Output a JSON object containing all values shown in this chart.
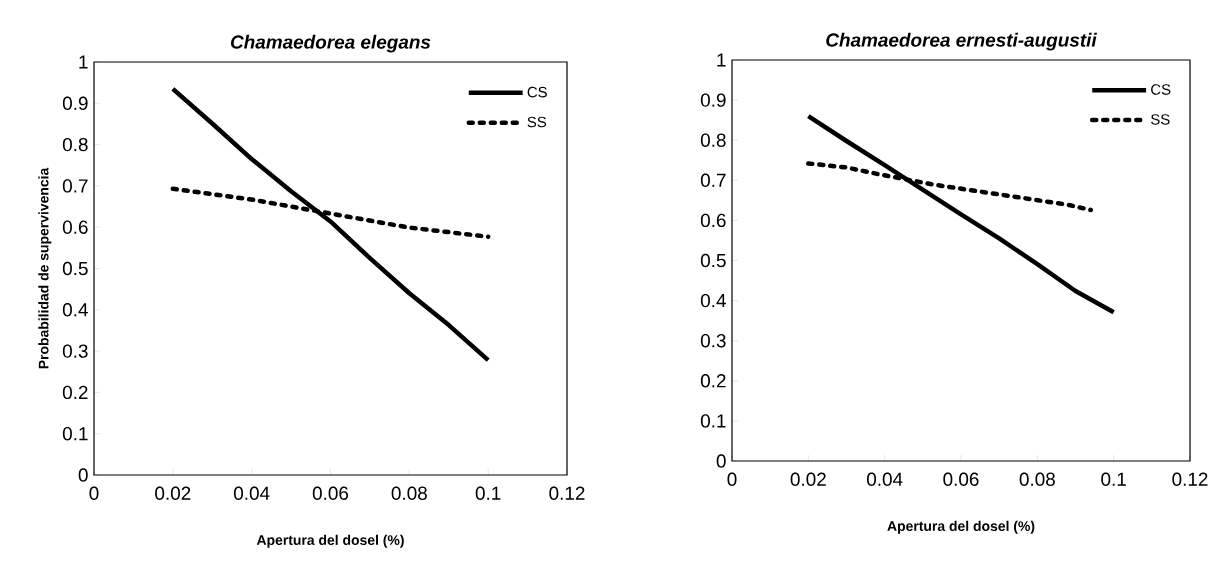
{
  "chart_data": [
    {
      "type": "line",
      "title": "Chamaedorea elegans",
      "xlabel": "Apertura del dosel (%)",
      "ylabel": "Probabilidad de supervivencia",
      "legend": "top right",
      "xlim": [
        0,
        0.12
      ],
      "ylim": [
        0,
        1
      ],
      "xticks": [
        0,
        0.02,
        0.04,
        0.06,
        0.08,
        0.1,
        0.12
      ],
      "yticks": [
        0,
        0.1,
        0.2,
        0.3,
        0.4,
        0.5,
        0.6,
        0.7,
        0.8,
        0.9,
        1
      ],
      "series": [
        {
          "name": "CS",
          "color": "#000000",
          "line_style": "solid",
          "x": [
            0.02,
            0.03,
            0.04,
            0.05,
            0.06,
            0.07,
            0.08,
            0.09,
            0.1
          ],
          "values": [
            0.935,
            0.851,
            0.765,
            0.687,
            0.614,
            0.525,
            0.44,
            0.363,
            0.278
          ]
        },
        {
          "name": "SS",
          "color": "#000000",
          "line_style": "dashed",
          "x": [
            0.02,
            0.04,
            0.06,
            0.08,
            0.1
          ],
          "values": [
            0.693,
            0.667,
            0.633,
            0.599,
            0.577
          ]
        }
      ]
    },
    {
      "type": "line",
      "title": "Chamaedorea ernesti-augustii",
      "xlabel": "Apertura del dosel (%)",
      "legend": "top right",
      "xlim": [
        0,
        0.12
      ],
      "ylim": [
        0,
        1
      ],
      "xticks": [
        0,
        0.02,
        0.04,
        0.06,
        0.08,
        0.1,
        0.12
      ],
      "yticks": [
        0,
        0.1,
        0.2,
        0.3,
        0.4,
        0.5,
        0.6,
        0.7,
        0.8,
        0.9,
        1
      ],
      "series": [
        {
          "name": "CS",
          "color": "#000000",
          "line_style": "solid",
          "x": [
            0.02,
            0.03,
            0.04,
            0.06,
            0.07,
            0.08,
            0.09,
            0.1
          ],
          "values": [
            0.86,
            0.798,
            0.738,
            0.615,
            0.555,
            0.491,
            0.424,
            0.371
          ]
        },
        {
          "name": "SS",
          "color": "#000000",
          "line_style": "dashed",
          "x": [
            0.02,
            0.03,
            0.038,
            0.053,
            0.088,
            0.094
          ],
          "values": [
            0.742,
            0.732,
            0.716,
            0.689,
            0.639,
            0.626
          ]
        }
      ]
    }
  ]
}
